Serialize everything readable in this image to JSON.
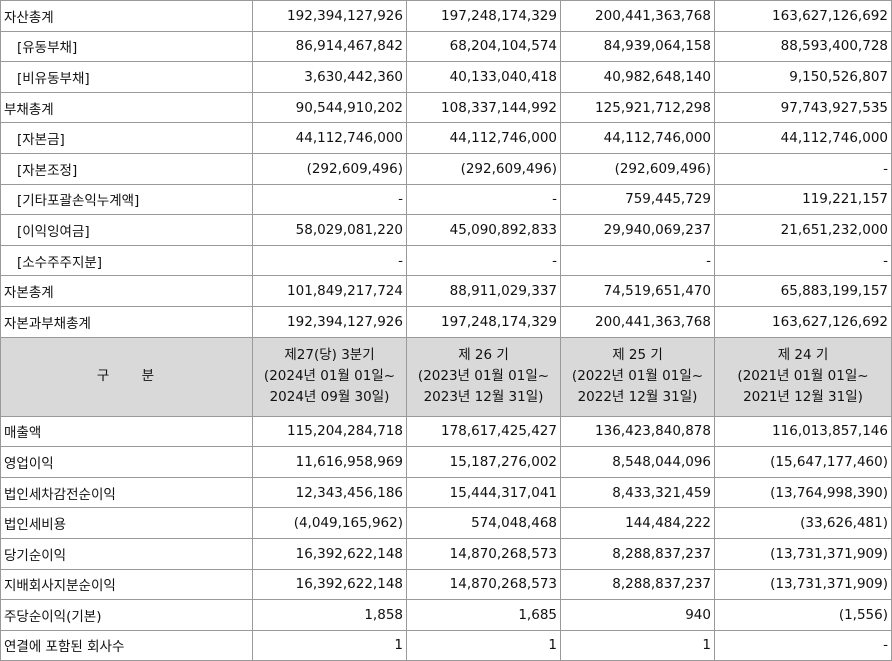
{
  "balance_rows": [
    {
      "label": "자산총계",
      "indent": false,
      "values": [
        "192,394,127,926",
        "197,248,174,329",
        "200,441,363,768",
        "163,627,126,692"
      ]
    },
    {
      "label": "[유동부채]",
      "indent": true,
      "values": [
        "86,914,467,842",
        "68,204,104,574",
        "84,939,064,158",
        "88,593,400,728"
      ]
    },
    {
      "label": "[비유동부채]",
      "indent": true,
      "values": [
        "3,630,442,360",
        "40,133,040,418",
        "40,982,648,140",
        "9,150,526,807"
      ]
    },
    {
      "label": "부채총계",
      "indent": false,
      "values": [
        "90,544,910,202",
        "108,337,144,992",
        "125,921,712,298",
        "97,743,927,535"
      ]
    },
    {
      "label": "[자본금]",
      "indent": true,
      "values": [
        "44,112,746,000",
        "44,112,746,000",
        "44,112,746,000",
        "44,112,746,000"
      ]
    },
    {
      "label": "[자본조정]",
      "indent": true,
      "values": [
        "(292,609,496)",
        "(292,609,496)",
        "(292,609,496)",
        "-"
      ]
    },
    {
      "label": "[기타포괄손익누계액]",
      "indent": true,
      "values": [
        "-",
        "-",
        "759,445,729",
        "119,221,157"
      ]
    },
    {
      "label": "[이익잉여금]",
      "indent": true,
      "values": [
        "58,029,081,220",
        "45,090,892,833",
        "29,940,069,237",
        "21,651,232,000"
      ]
    },
    {
      "label": "[소수주주지분]",
      "indent": true,
      "values": [
        "-",
        "-",
        "-",
        "-"
      ]
    },
    {
      "label": "자본총계",
      "indent": false,
      "values": [
        "101,849,217,724",
        "88,911,029,337",
        "74,519,651,470",
        "65,883,199,157"
      ]
    },
    {
      "label": "자본과부채총계",
      "indent": false,
      "values": [
        "192,394,127,926",
        "197,248,174,329",
        "200,441,363,768",
        "163,627,126,692"
      ]
    }
  ],
  "header": {
    "gubun": "구 분",
    "periods": [
      {
        "name": "제27(당) 3분기",
        "from": "(2024년 01월 01일~",
        "to": "2024년 09월 30일)"
      },
      {
        "name": "제 26 기",
        "from": "(2023년 01월 01일~",
        "to": "2023년 12월 31일)"
      },
      {
        "name": "제 25 기",
        "from": "(2022년 01월 01일~",
        "to": "2022년 12월 31일)"
      },
      {
        "name": "제 24 기",
        "from": "(2021년 01월 01일~",
        "to": "2021년 12월 31일)"
      }
    ]
  },
  "income_rows": [
    {
      "label": "매출액",
      "values": [
        "115,204,284,718",
        "178,617,425,427",
        "136,423,840,878",
        "116,013,857,146"
      ]
    },
    {
      "label": "영업이익",
      "values": [
        "11,616,958,969",
        "15,187,276,002",
        "8,548,044,096",
        "(15,647,177,460)"
      ]
    },
    {
      "label": "법인세차감전순이익",
      "values": [
        "12,343,456,186",
        "15,444,317,041",
        "8,433,321,459",
        "(13,764,998,390)"
      ]
    },
    {
      "label": "법인세비용",
      "values": [
        "(4,049,165,962)",
        "574,048,468",
        "144,484,222",
        "(33,626,481)"
      ]
    },
    {
      "label": "당기순이익",
      "values": [
        "16,392,622,148",
        "14,870,268,573",
        "8,288,837,237",
        "(13,731,371,909)"
      ]
    },
    {
      "label": "지배회사지분순이익",
      "values": [
        "16,392,622,148",
        "14,870,268,573",
        "8,288,837,237",
        "(13,731,371,909)"
      ]
    },
    {
      "label": "주당순이익(기본)",
      "values": [
        "1,858",
        "1,685",
        "940",
        "(1,556)"
      ]
    },
    {
      "label": "연결에 포함된 회사수",
      "values": [
        "1",
        "1",
        "1",
        "-"
      ]
    }
  ]
}
